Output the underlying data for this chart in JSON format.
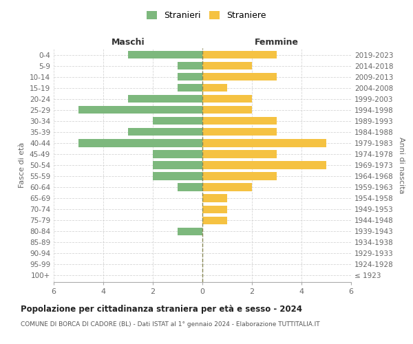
{
  "age_groups": [
    "100+",
    "95-99",
    "90-94",
    "85-89",
    "80-84",
    "75-79",
    "70-74",
    "65-69",
    "60-64",
    "55-59",
    "50-54",
    "45-49",
    "40-44",
    "35-39",
    "30-34",
    "25-29",
    "20-24",
    "15-19",
    "10-14",
    "5-9",
    "0-4"
  ],
  "birth_years": [
    "≤ 1923",
    "1924-1928",
    "1929-1933",
    "1934-1938",
    "1939-1943",
    "1944-1948",
    "1949-1953",
    "1954-1958",
    "1959-1963",
    "1964-1968",
    "1969-1973",
    "1974-1978",
    "1979-1983",
    "1984-1988",
    "1989-1993",
    "1994-1998",
    "1999-2003",
    "2004-2008",
    "2009-2013",
    "2014-2018",
    "2019-2023"
  ],
  "males": [
    0,
    0,
    0,
    0,
    1,
    0,
    0,
    0,
    1,
    2,
    2,
    2,
    5,
    3,
    2,
    5,
    3,
    1,
    1,
    1,
    3
  ],
  "females": [
    0,
    0,
    0,
    0,
    0,
    1,
    1,
    1,
    2,
    3,
    5,
    3,
    5,
    3,
    3,
    2,
    2,
    1,
    3,
    2,
    3
  ],
  "male_color": "#7db87d",
  "female_color": "#f5c242",
  "background_color": "#ffffff",
  "grid_color": "#cccccc",
  "title": "Popolazione per cittadinanza straniera per età e sesso - 2024",
  "subtitle": "COMUNE DI BORCA DI CADORE (BL) - Dati ISTAT al 1° gennaio 2024 - Elaborazione TUTTITALIA.IT",
  "xlabel_left": "Maschi",
  "xlabel_right": "Femmine",
  "ylabel_left": "Fasce di età",
  "ylabel_right": "Anni di nascita",
  "legend_males": "Stranieri",
  "legend_females": "Straniere",
  "xlim": 6
}
